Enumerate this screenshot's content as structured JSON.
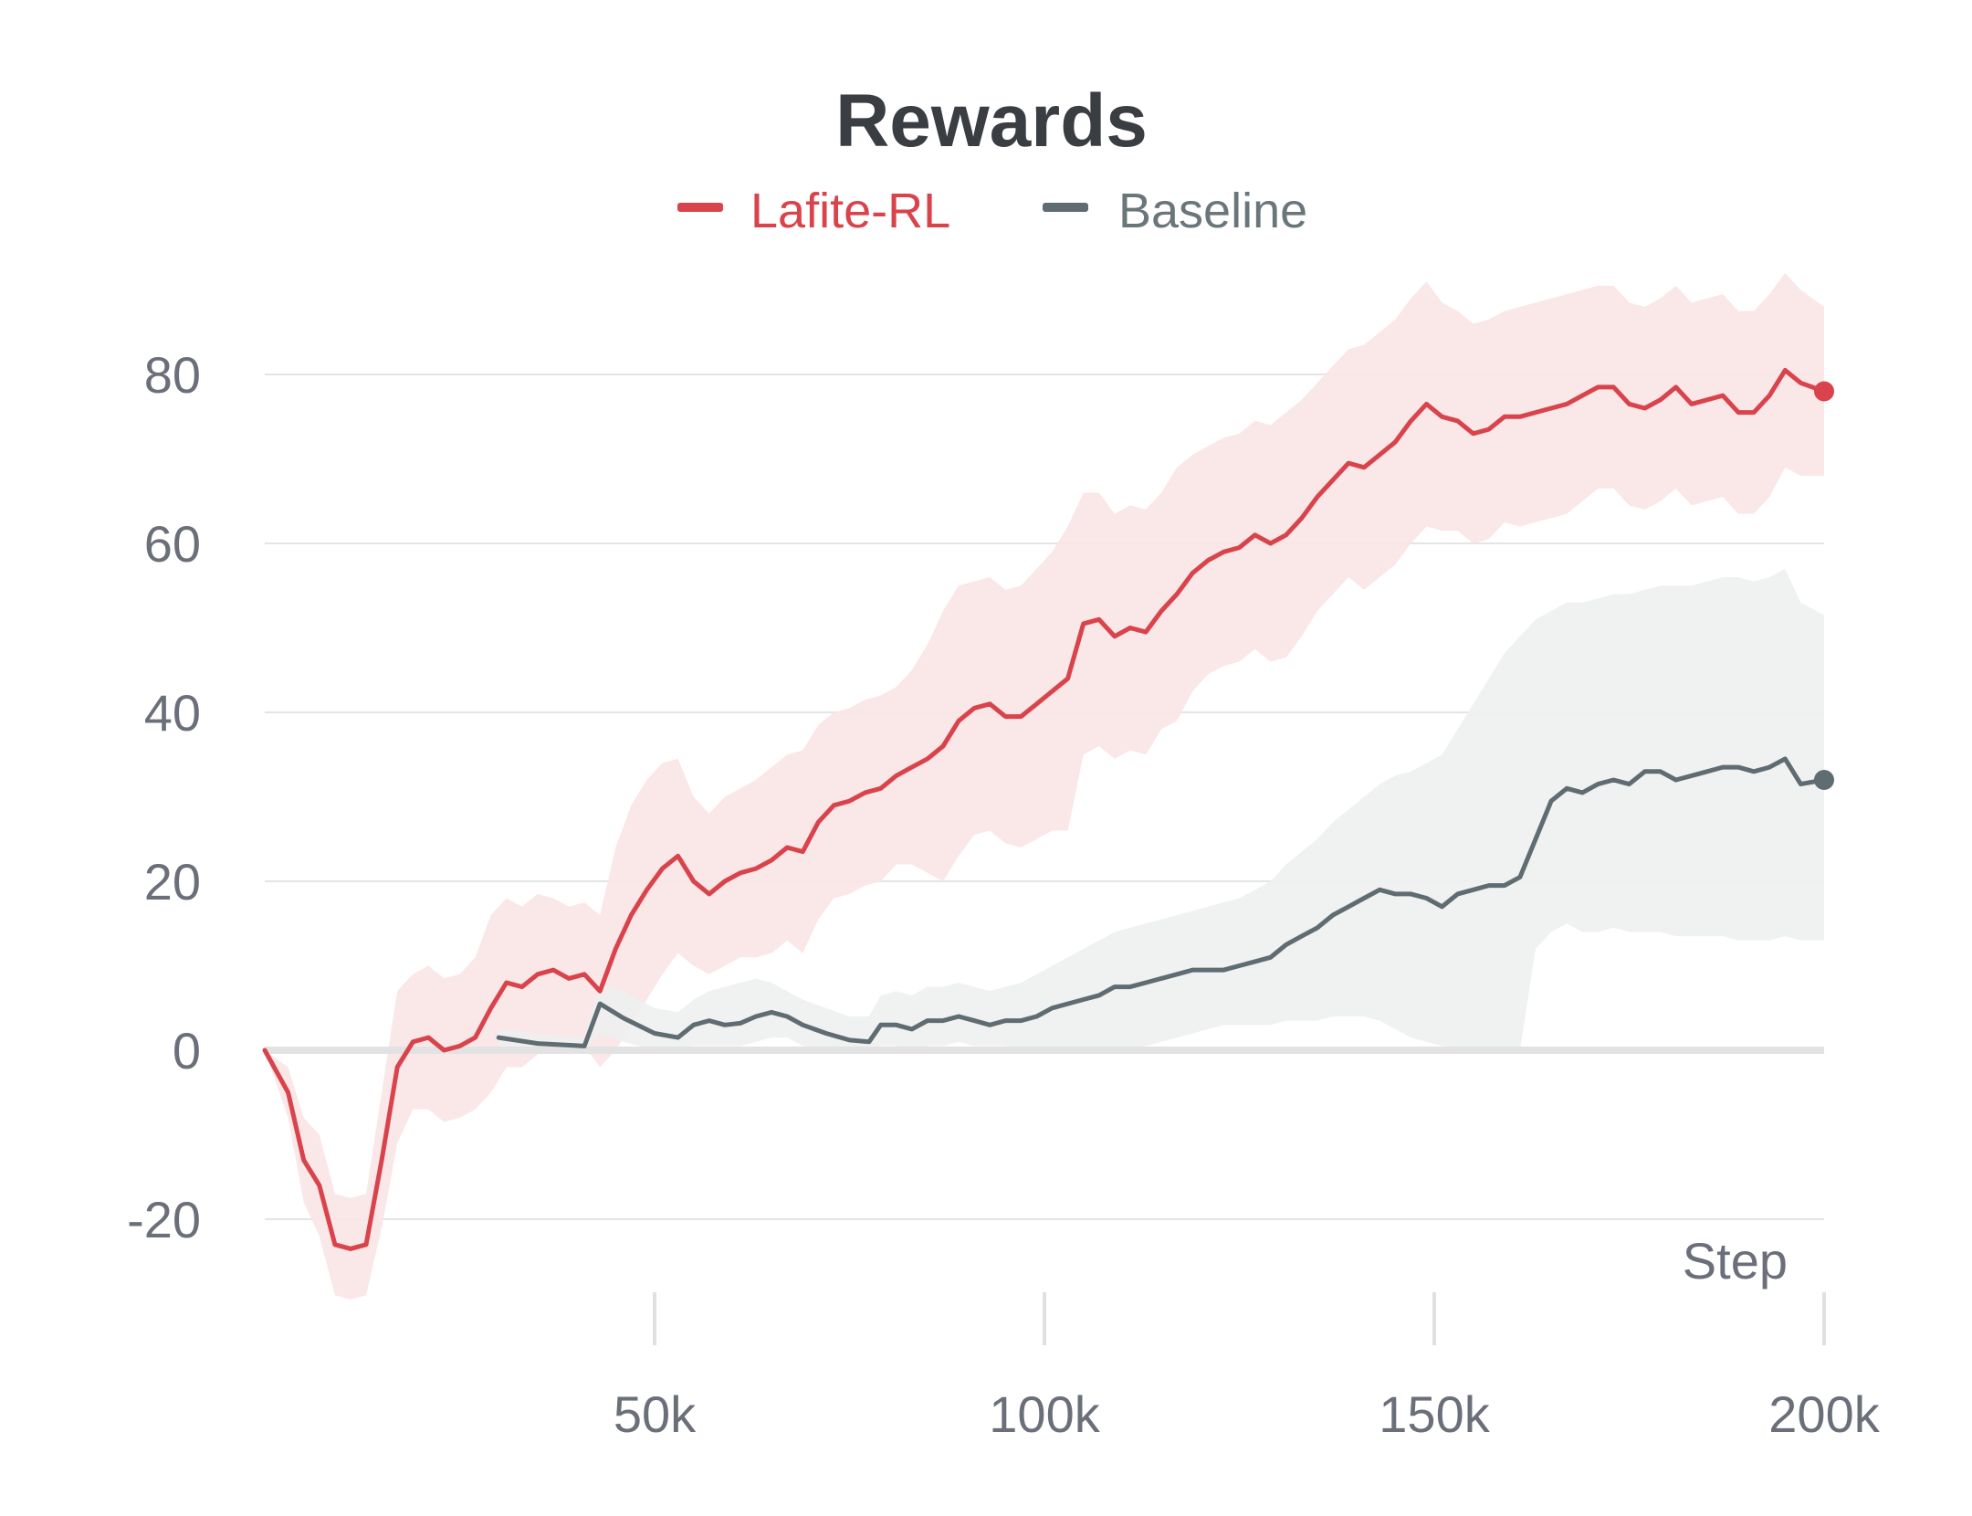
{
  "chart_data": {
    "type": "line",
    "title": "Rewards",
    "xlabel": "Step",
    "ylabel": "",
    "xlim": [
      0,
      200000
    ],
    "ylim": [
      -30,
      90
    ],
    "x_ticks": [
      50000,
      100000,
      150000,
      200000
    ],
    "x_tick_labels": [
      "50k",
      "100k",
      "150k",
      "200k"
    ],
    "y_ticks": [
      -20,
      0,
      20,
      40,
      60,
      80
    ],
    "y_tick_labels": [
      "-20",
      "0",
      "20",
      "40",
      "60",
      "80"
    ],
    "grid": true,
    "legend_position": "top-center",
    "series": [
      {
        "name": "Lafite-RL",
        "color": "#d9434b",
        "band_color": "#f9e4e5",
        "x": [
          0,
          3000,
          5000,
          7000,
          9000,
          11000,
          13000,
          15000,
          17000,
          19000,
          21000,
          23000,
          25000,
          27000,
          29000,
          31000,
          33000,
          35000,
          37000,
          39000,
          41000,
          43000,
          45000,
          47000,
          49000,
          51000,
          53000,
          55000,
          57000,
          59000,
          61000,
          63000,
          65000,
          67000,
          69000,
          71000,
          73000,
          75000,
          77000,
          79000,
          81000,
          83000,
          85000,
          87000,
          89000,
          91000,
          93000,
          95000,
          97000,
          99000,
          101000,
          103000,
          105000,
          107000,
          109000,
          111000,
          113000,
          115000,
          117000,
          119000,
          121000,
          123000,
          125000,
          127000,
          129000,
          131000,
          133000,
          135000,
          137000,
          139000,
          141000,
          143000,
          145000,
          147000,
          149000,
          151000,
          153000,
          155000,
          157000,
          159000,
          161000,
          163000,
          165000,
          167000,
          169000,
          171000,
          173000,
          175000,
          177000,
          179000,
          181000,
          183000,
          185000,
          187000,
          189000,
          191000,
          193000,
          195000,
          197000,
          200000
        ],
        "values": [
          0,
          -5,
          -13,
          -16,
          -23,
          -23.5,
          -23,
          -13,
          -2,
          1,
          1.5,
          0,
          0.5,
          1.5,
          5,
          8,
          7.5,
          9,
          9.5,
          8.5,
          9,
          7,
          12,
          16,
          19,
          21.5,
          23,
          20,
          18.5,
          20,
          21,
          21.5,
          22.5,
          24,
          23.5,
          27,
          29,
          29.5,
          30.5,
          31,
          32.5,
          33.5,
          34.5,
          36,
          39,
          40.5,
          41,
          39.5,
          39.5,
          41,
          42.5,
          44,
          50.5,
          51,
          49,
          50,
          49.5,
          52,
          54,
          56.5,
          58,
          59,
          59.5,
          61,
          60,
          61,
          63,
          65.5,
          67.5,
          69.5,
          69,
          70.5,
          72,
          74.5,
          76.5,
          75,
          74.5,
          73,
          73.5,
          75,
          75,
          75.5,
          76,
          76.5,
          77.5,
          78.5,
          78.5,
          76.5,
          76,
          77,
          78.5,
          76.5,
          77,
          77.5,
          75.5,
          75.5,
          77.5,
          80.5,
          79,
          78
        ],
        "upper": [
          0,
          -2,
          -8,
          -10,
          -17,
          -17.5,
          -17,
          -5,
          7,
          9,
          10,
          8.5,
          9,
          11,
          16,
          18,
          17,
          18.5,
          18,
          17,
          17.5,
          16,
          24,
          29,
          32,
          34,
          34.5,
          30,
          28,
          30,
          31,
          32,
          33.5,
          35,
          35.5,
          38.5,
          40,
          40.5,
          41.5,
          42,
          43,
          45,
          48,
          52,
          55,
          55.5,
          56,
          54.5,
          55,
          57,
          59,
          62,
          66,
          66,
          63.5,
          64.5,
          64,
          66,
          69,
          70.5,
          71.5,
          72.5,
          73,
          74.5,
          74,
          75.5,
          77,
          79,
          81,
          83,
          83.5,
          85,
          86.5,
          89,
          91,
          88.5,
          87.5,
          86,
          86.5,
          87.5,
          88,
          88.5,
          89,
          89.5,
          90,
          90.5,
          90.5,
          88.5,
          88,
          89,
          90.5,
          88.5,
          89,
          89.5,
          87.5,
          87.5,
          89.5,
          92,
          90,
          88
        ],
        "lower": [
          0,
          -8,
          -18,
          -22,
          -29,
          -29.5,
          -29,
          -21,
          -11,
          -7,
          -7,
          -8.5,
          -8,
          -7,
          -5,
          -2,
          -2,
          -0.5,
          1,
          0,
          0.5,
          -2,
          0,
          3,
          6,
          9,
          11.5,
          10,
          9,
          10,
          11,
          11,
          11.5,
          13,
          11.5,
          15.5,
          18,
          18.5,
          19.5,
          20,
          22,
          22,
          21,
          20,
          23,
          25.5,
          26,
          24.5,
          24,
          25,
          26,
          26,
          35,
          36,
          34.5,
          35.5,
          35,
          38,
          39,
          42.5,
          44.5,
          45.5,
          46,
          47.5,
          46,
          46.5,
          49,
          52,
          54,
          56,
          54.5,
          56,
          57.5,
          60,
          62,
          61.5,
          61.5,
          60,
          60.5,
          62.5,
          62,
          62.5,
          63,
          63.5,
          65,
          66.5,
          66.5,
          64.5,
          64,
          65,
          66.5,
          64.5,
          65,
          65.5,
          63.5,
          63.5,
          65.5,
          69,
          68,
          68
        ]
      },
      {
        "name": "Baseline",
        "color": "#5f6c71",
        "band_color": "#eef0ef",
        "x": [
          30000,
          35000,
          41000,
          43000,
          46000,
          50000,
          53000,
          55000,
          57000,
          59000,
          61000,
          63000,
          65000,
          67000,
          69000,
          72000,
          75000,
          77500,
          79000,
          81000,
          83000,
          85000,
          87000,
          89000,
          91000,
          93000,
          95000,
          97000,
          99000,
          101000,
          103000,
          105000,
          107000,
          109000,
          111000,
          113000,
          115000,
          117000,
          119000,
          121000,
          123000,
          125000,
          127000,
          129000,
          131000,
          133000,
          135000,
          137000,
          139000,
          141000,
          143000,
          145000,
          147000,
          149000,
          151000,
          153000,
          155000,
          157000,
          159000,
          161000,
          163000,
          165000,
          167000,
          169000,
          171000,
          173000,
          175000,
          177000,
          179000,
          181000,
          183000,
          185000,
          187000,
          189000,
          191000,
          193000,
          195000,
          197000,
          200000
        ],
        "values": [
          1.5,
          0.8,
          0.5,
          5.5,
          3.8,
          2,
          1.5,
          3,
          3.5,
          3,
          3.2,
          4,
          4.5,
          4,
          3,
          2,
          1.2,
          1,
          3,
          3,
          2.5,
          3.5,
          3.5,
          4,
          3.5,
          3,
          3.5,
          3.5,
          4,
          5,
          5.5,
          6,
          6.5,
          7.5,
          7.5,
          8,
          8.5,
          9,
          9.5,
          9.5,
          9.5,
          10,
          10.5,
          11,
          12.5,
          13.5,
          14.5,
          16,
          17,
          18,
          19,
          18.5,
          18.5,
          18,
          17,
          18.5,
          19,
          19.5,
          19.5,
          20.5,
          25,
          29.5,
          31,
          30.5,
          31.5,
          32,
          31.5,
          33,
          33,
          32,
          32.5,
          33,
          33.5,
          33.5,
          33,
          33.5,
          34.5,
          31.5,
          32
        ],
        "upper": [
          2.5,
          2,
          1.5,
          8,
          7,
          5,
          4.5,
          6,
          7,
          7.5,
          8,
          8.5,
          8,
          7,
          6,
          5,
          4,
          4,
          6.5,
          7,
          6.5,
          7.5,
          7.5,
          8,
          7.5,
          7,
          7.5,
          8,
          9,
          10,
          11,
          12,
          13,
          14,
          14.5,
          15,
          15.5,
          16,
          16.5,
          17,
          17.5,
          18,
          19,
          20,
          22,
          23.5,
          25,
          27,
          28.5,
          30,
          31.5,
          32.5,
          33,
          34,
          35,
          38,
          41,
          44,
          47,
          49,
          51,
          52,
          53,
          53,
          53.5,
          54,
          54,
          54.5,
          55,
          55,
          55,
          55.5,
          56,
          56,
          55.5,
          56,
          57,
          53,
          51.5
        ],
        "lower": [
          0.5,
          0.2,
          0,
          2,
          1,
          0,
          0,
          0.5,
          0.5,
          0.5,
          0.5,
          1,
          1.5,
          1.5,
          0.5,
          0,
          0,
          0,
          0.5,
          0.5,
          0,
          0.5,
          0.5,
          1,
          0.5,
          0.5,
          0.5,
          0,
          0,
          0,
          0,
          0,
          0,
          0,
          0,
          0.5,
          1,
          1.5,
          2,
          2.5,
          3,
          3,
          3,
          3,
          3.5,
          3.5,
          3.5,
          4,
          4,
          4,
          3.5,
          2.5,
          1.5,
          1,
          0.5,
          0.3,
          0,
          0,
          0,
          0,
          12,
          14,
          15,
          14,
          14,
          14.5,
          14,
          14,
          14,
          13.5,
          13.5,
          13.5,
          13.5,
          13,
          13,
          13,
          13.5,
          13,
          13
        ]
      }
    ]
  }
}
